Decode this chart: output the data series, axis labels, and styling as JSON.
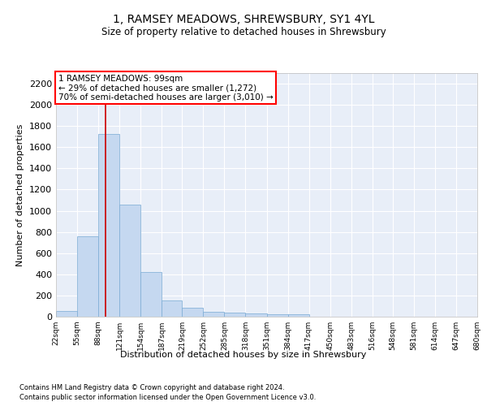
{
  "title_line1": "1, RAMSEY MEADOWS, SHREWSBURY, SY1 4YL",
  "title_line2": "Size of property relative to detached houses in Shrewsbury",
  "xlabel": "Distribution of detached houses by size in Shrewsbury",
  "ylabel": "Number of detached properties",
  "bar_color": "#c5d8f0",
  "bar_edge_color": "#7aabd4",
  "background_color": "#e8eef8",
  "grid_color": "#ffffff",
  "annotation_text": "1 RAMSEY MEADOWS: 99sqm\n← 29% of detached houses are smaller (1,272)\n70% of semi-detached houses are larger (3,010) →",
  "vline_x": 99,
  "vline_color": "#cc0000",
  "footnote_line1": "Contains HM Land Registry data © Crown copyright and database right 2024.",
  "footnote_line2": "Contains public sector information licensed under the Open Government Licence v3.0.",
  "bin_edges": [
    22,
    55,
    88,
    121,
    154,
    187,
    219,
    252,
    285,
    318,
    351,
    384,
    417,
    450,
    483,
    516,
    548,
    581,
    614,
    647,
    680
  ],
  "bar_heights": [
    55,
    762,
    1726,
    1059,
    418,
    152,
    81,
    48,
    40,
    28,
    20,
    20,
    0,
    0,
    0,
    0,
    0,
    0,
    0,
    0
  ],
  "ylim": [
    0,
    2300
  ],
  "yticks": [
    0,
    200,
    400,
    600,
    800,
    1000,
    1200,
    1400,
    1600,
    1800,
    2000,
    2200
  ],
  "tick_labels": [
    "22sqm",
    "55sqm",
    "88sqm",
    "121sqm",
    "154sqm",
    "187sqm",
    "219sqm",
    "252sqm",
    "285sqm",
    "318sqm",
    "351sqm",
    "384sqm",
    "417sqm",
    "450sqm",
    "483sqm",
    "516sqm",
    "548sqm",
    "581sqm",
    "614sqm",
    "647sqm",
    "680sqm"
  ],
  "title_fontsize": 10,
  "subtitle_fontsize": 8.5,
  "ylabel_fontsize": 8,
  "xlabel_fontsize": 8,
  "ytick_fontsize": 8,
  "xtick_fontsize": 6.5,
  "annotation_fontsize": 7.5,
  "footnote_fontsize": 6
}
